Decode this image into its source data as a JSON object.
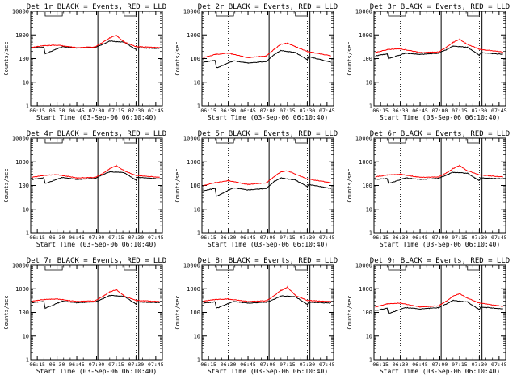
{
  "chart_data": [
    {
      "type": "line",
      "title": "Det 1r BLACK = Events, RED = LLD",
      "xlabel": "Start Time (03-Sep-06 06:10:40)",
      "ylabel": "Counts/sec",
      "x_ticks": [
        "06:15",
        "06:30",
        "06:45",
        "07:00",
        "07:15",
        "07:30",
        "07:45"
      ],
      "y_ticks": [
        "1",
        "10",
        "100",
        "1000",
        "10000"
      ],
      "yscale": "log",
      "ylim": [
        1,
        10000
      ],
      "xlim": [
        "06:10",
        "07:50"
      ],
      "grid": false,
      "legend": "none",
      "colors": {
        "events": "#000000",
        "lld": "#ff0000"
      },
      "attenuator_periods": [
        [
          "06:21",
          "06:34"
        ],
        [
          "07:21",
          "07:30"
        ]
      ],
      "marker_times_dotted": [
        "06:30",
        "07:30"
      ],
      "marker_times_solid": [
        "07:01",
        "07:32"
      ],
      "series": [
        {
          "x": [
            "06:11",
            "06:20",
            "06:21",
            "06:34",
            "06:45",
            "06:59",
            "07:05",
            "07:10",
            "07:15",
            "07:21",
            "07:30",
            "07:31",
            "07:48"
          ],
          "values": [
            280,
            305,
            160,
            320,
            280,
            300,
            400,
            550,
            520,
            500,
            240,
            280,
            270
          ]
        },
        {
          "x": [
            "06:11",
            "06:20",
            "06:30",
            "06:45",
            "06:59",
            "07:05",
            "07:10",
            "07:15",
            "07:21",
            "07:30",
            "07:48"
          ],
          "values": [
            300,
            350,
            370,
            290,
            310,
            500,
            750,
            960,
            500,
            320,
            290
          ]
        }
      ]
    },
    {
      "type": "line",
      "title": "Det 2r BLACK = Events, RED = LLD",
      "xlabel": "Start Time (03-Sep-06 06:10:40)",
      "ylabel": "Counts/sec",
      "x_ticks": [
        "06:15",
        "06:30",
        "06:45",
        "07:00",
        "07:15",
        "07:30",
        "07:45"
      ],
      "y_ticks": [
        "1",
        "10",
        "100",
        "1000",
        "10000"
      ],
      "yscale": "log",
      "ylim": [
        1,
        10000
      ],
      "xlim": [
        "06:10",
        "07:50"
      ],
      "grid": false,
      "legend": "none",
      "colors": {
        "events": "#000000",
        "lld": "#ff0000"
      },
      "attenuator_periods": [
        [
          "06:21",
          "06:34"
        ],
        [
          "07:21",
          "07:30"
        ]
      ],
      "marker_times_dotted": [
        "06:30",
        "07:30"
      ],
      "marker_times_solid": [
        "07:01",
        "07:32"
      ],
      "series": [
        {
          "x": [
            "06:11",
            "06:20",
            "06:21",
            "06:34",
            "06:45",
            "06:59",
            "07:05",
            "07:10",
            "07:15",
            "07:21",
            "07:30",
            "07:31",
            "07:48"
          ],
          "values": [
            70,
            85,
            40,
            80,
            65,
            75,
            150,
            220,
            200,
            180,
            90,
            120,
            70
          ]
        },
        {
          "x": [
            "06:11",
            "06:20",
            "06:30",
            "06:45",
            "06:59",
            "07:05",
            "07:10",
            "07:15",
            "07:21",
            "07:30",
            "07:48"
          ],
          "values": [
            110,
            150,
            170,
            110,
            130,
            250,
            400,
            450,
            320,
            200,
            130
          ]
        }
      ]
    },
    {
      "type": "line",
      "title": "Det 3r BLACK = Events, RED = LLD",
      "xlabel": "Start Time (03-Sep-06 06:10:40)",
      "ylabel": "Counts/sec",
      "x_ticks": [
        "06:15",
        "06:30",
        "06:45",
        "07:00",
        "07:15",
        "07:30",
        "07:45"
      ],
      "y_ticks": [
        "1",
        "10",
        "100",
        "1000",
        "10000"
      ],
      "yscale": "log",
      "ylim": [
        1,
        10000
      ],
      "xlim": [
        "06:10",
        "07:50"
      ],
      "grid": false,
      "legend": "none",
      "colors": {
        "events": "#000000",
        "lld": "#ff0000"
      },
      "attenuator_periods": [
        [
          "06:21",
          "06:34"
        ],
        [
          "07:21",
          "07:30"
        ]
      ],
      "marker_times_dotted": [
        "06:30",
        "07:30"
      ],
      "marker_times_solid": [
        "07:01",
        "07:32"
      ],
      "series": [
        {
          "x": [
            "06:11",
            "06:20",
            "06:21",
            "06:34",
            "06:45",
            "06:59",
            "07:05",
            "07:10",
            "07:15",
            "07:21",
            "07:30",
            "07:31",
            "07:48"
          ],
          "values": [
            130,
            160,
            100,
            170,
            150,
            170,
            240,
            330,
            320,
            300,
            140,
            180,
            150
          ]
        },
        {
          "x": [
            "06:11",
            "06:20",
            "06:30",
            "06:45",
            "06:59",
            "07:05",
            "07:10",
            "07:15",
            "07:21",
            "07:30",
            "07:48"
          ],
          "values": [
            180,
            240,
            260,
            180,
            190,
            300,
            480,
            650,
            400,
            250,
            190
          ]
        }
      ]
    },
    {
      "type": "line",
      "title": "Det 4r BLACK = Events, RED = LLD",
      "xlabel": "Start Time (03-Sep-06 06:10:40)",
      "ylabel": "Counts/sec",
      "x_ticks": [
        "06:15",
        "06:30",
        "06:45",
        "07:00",
        "07:15",
        "07:30",
        "07:45"
      ],
      "y_ticks": [
        "1",
        "10",
        "100",
        "1000",
        "10000"
      ],
      "yscale": "log",
      "ylim": [
        1,
        10000
      ],
      "xlim": [
        "06:10",
        "07:50"
      ],
      "grid": false,
      "legend": "none",
      "colors": {
        "events": "#000000",
        "lld": "#ff0000"
      },
      "attenuator_periods": [
        [
          "06:21",
          "06:34"
        ],
        [
          "07:21",
          "07:30"
        ]
      ],
      "marker_times_dotted": [
        "06:30",
        "07:30"
      ],
      "marker_times_solid": [
        "07:01",
        "07:32"
      ],
      "series": [
        {
          "x": [
            "06:11",
            "06:20",
            "06:21",
            "06:34",
            "06:45",
            "06:59",
            "07:05",
            "07:10",
            "07:15",
            "07:21",
            "07:30",
            "07:31",
            "07:48"
          ],
          "values": [
            180,
            210,
            120,
            220,
            180,
            200,
            290,
            380,
            370,
            350,
            170,
            220,
            190
          ]
        },
        {
          "x": [
            "06:11",
            "06:20",
            "06:30",
            "06:45",
            "06:59",
            "07:05",
            "07:10",
            "07:15",
            "07:21",
            "07:30",
            "07:48"
          ],
          "values": [
            220,
            270,
            290,
            210,
            220,
            330,
            520,
            700,
            420,
            270,
            220
          ]
        }
      ]
    },
    {
      "type": "line",
      "title": "Det 5r BLACK = Events, RED = LLD",
      "xlabel": "Start Time (03-Sep-06 06:10:40)",
      "ylabel": "Counts/sec",
      "x_ticks": [
        "06:15",
        "06:30",
        "06:45",
        "07:00",
        "07:15",
        "07:30",
        "07:45"
      ],
      "y_ticks": [
        "1",
        "10",
        "100",
        "1000",
        "10000"
      ],
      "yscale": "log",
      "ylim": [
        1,
        10000
      ],
      "xlim": [
        "06:10",
        "07:50"
      ],
      "grid": false,
      "legend": "none",
      "colors": {
        "events": "#000000",
        "lld": "#ff0000"
      },
      "attenuator_periods": [
        [
          "06:21",
          "06:34"
        ],
        [
          "07:21",
          "07:30"
        ]
      ],
      "marker_times_dotted": [
        "06:30",
        "07:30"
      ],
      "marker_times_solid": [
        "07:01",
        "07:32"
      ],
      "series": [
        {
          "x": [
            "06:11",
            "06:20",
            "06:21",
            "06:34",
            "06:45",
            "06:59",
            "07:05",
            "07:10",
            "07:15",
            "07:21",
            "07:30",
            "07:31",
            "07:48"
          ],
          "values": [
            60,
            75,
            35,
            80,
            65,
            75,
            150,
            210,
            190,
            170,
            90,
            110,
            75
          ]
        },
        {
          "x": [
            "06:11",
            "06:20",
            "06:30",
            "06:45",
            "06:59",
            "07:05",
            "07:10",
            "07:15",
            "07:21",
            "07:30",
            "07:48"
          ],
          "values": [
            100,
            130,
            160,
            110,
            130,
            240,
            380,
            420,
            300,
            190,
            130
          ]
        }
      ]
    },
    {
      "type": "line",
      "title": "Det 6r BLACK = Events, RED = LLD",
      "xlabel": "Start Time (03-Sep-06 06:10:40)",
      "ylabel": "Counts/sec",
      "x_ticks": [
        "06:15",
        "06:30",
        "06:45",
        "07:00",
        "07:15",
        "07:30",
        "07:45"
      ],
      "y_ticks": [
        "1",
        "10",
        "100",
        "1000",
        "10000"
      ],
      "yscale": "log",
      "ylim": [
        1,
        10000
      ],
      "xlim": [
        "06:10",
        "07:50"
      ],
      "grid": false,
      "legend": "none",
      "colors": {
        "events": "#000000",
        "lld": "#ff0000"
      },
      "attenuator_periods": [
        [
          "06:21",
          "06:34"
        ],
        [
          "07:21",
          "07:30"
        ]
      ],
      "marker_times_dotted": [
        "06:30",
        "07:30"
      ],
      "marker_times_solid": [
        "07:01",
        "07:32"
      ],
      "series": [
        {
          "x": [
            "06:11",
            "06:20",
            "06:21",
            "06:34",
            "06:45",
            "06:59",
            "07:05",
            "07:10",
            "07:15",
            "07:21",
            "07:30",
            "07:31",
            "07:48"
          ],
          "values": [
            180,
            200,
            120,
            210,
            180,
            200,
            280,
            360,
            350,
            330,
            160,
            210,
            190
          ]
        },
        {
          "x": [
            "06:11",
            "06:20",
            "06:30",
            "06:45",
            "06:59",
            "07:05",
            "07:10",
            "07:15",
            "07:21",
            "07:30",
            "07:48"
          ],
          "values": [
            230,
            280,
            300,
            220,
            230,
            340,
            520,
            700,
            420,
            280,
            230
          ]
        }
      ]
    },
    {
      "type": "line",
      "title": "Det 7r BLACK = Events, RED = LLD",
      "xlabel": "Start Time (03-Sep-06 06:10:40)",
      "ylabel": "Counts/sec",
      "x_ticks": [
        "06:15",
        "06:30",
        "06:45",
        "07:00",
        "07:15",
        "07:30",
        "07:45"
      ],
      "y_ticks": [
        "1",
        "10",
        "100",
        "1000",
        "10000"
      ],
      "yscale": "log",
      "ylim": [
        1,
        10000
      ],
      "xlim": [
        "06:10",
        "07:50"
      ],
      "grid": false,
      "legend": "none",
      "colors": {
        "events": "#000000",
        "lld": "#ff0000"
      },
      "attenuator_periods": [
        [
          "06:21",
          "06:34"
        ],
        [
          "07:21",
          "07:30"
        ]
      ],
      "marker_times_dotted": [
        "06:30",
        "07:30"
      ],
      "marker_times_solid": [
        "07:01",
        "07:32"
      ],
      "series": [
        {
          "x": [
            "06:11",
            "06:20",
            "06:21",
            "06:34",
            "06:45",
            "06:59",
            "07:05",
            "07:10",
            "07:15",
            "07:21",
            "07:30",
            "07:31",
            "07:48"
          ],
          "values": [
            260,
            290,
            150,
            300,
            260,
            280,
            380,
            520,
            500,
            480,
            230,
            280,
            260
          ]
        },
        {
          "x": [
            "06:11",
            "06:20",
            "06:30",
            "06:45",
            "06:59",
            "07:05",
            "07:10",
            "07:15",
            "07:21",
            "07:30",
            "07:48"
          ],
          "values": [
            300,
            350,
            370,
            290,
            310,
            480,
            740,
            920,
            500,
            320,
            290
          ]
        }
      ]
    },
    {
      "type": "line",
      "title": "Det 8r BLACK = Events, RED = LLD",
      "xlabel": "Start Time (03-Sep-06 06:10:40)",
      "ylabel": "Counts/sec",
      "x_ticks": [
        "06:15",
        "06:30",
        "06:45",
        "07:00",
        "07:15",
        "07:30",
        "07:45"
      ],
      "y_ticks": [
        "1",
        "10",
        "100",
        "1000",
        "10000"
      ],
      "yscale": "log",
      "ylim": [
        1,
        10000
      ],
      "xlim": [
        "06:10",
        "07:50"
      ],
      "grid": false,
      "legend": "none",
      "colors": {
        "events": "#000000",
        "lld": "#ff0000"
      },
      "attenuator_periods": [
        [
          "06:21",
          "06:34"
        ],
        [
          "07:21",
          "07:30"
        ]
      ],
      "marker_times_dotted": [
        "06:30",
        "07:30"
      ],
      "marker_times_solid": [
        "07:01",
        "07:32"
      ],
      "series": [
        {
          "x": [
            "06:11",
            "06:20",
            "06:21",
            "06:34",
            "06:45",
            "06:59",
            "07:05",
            "07:10",
            "07:15",
            "07:21",
            "07:30",
            "07:31",
            "07:48"
          ],
          "values": [
            250,
            280,
            150,
            290,
            250,
            270,
            360,
            500,
            480,
            460,
            220,
            270,
            250
          ]
        },
        {
          "x": [
            "06:11",
            "06:20",
            "06:30",
            "06:45",
            "06:59",
            "07:05",
            "07:10",
            "07:15",
            "07:21",
            "07:30",
            "07:48"
          ],
          "values": [
            300,
            350,
            370,
            290,
            310,
            520,
            850,
            1150,
            520,
            320,
            290
          ]
        }
      ]
    },
    {
      "type": "line",
      "title": "Det 9r BLACK = Events, RED = LLD",
      "xlabel": "Start Time (03-Sep-06 06:10:40)",
      "ylabel": "Counts/sec",
      "x_ticks": [
        "06:15",
        "06:30",
        "06:45",
        "07:00",
        "07:15",
        "07:30",
        "07:45"
      ],
      "y_ticks": [
        "1",
        "10",
        "100",
        "1000",
        "10000"
      ],
      "yscale": "log",
      "ylim": [
        1,
        10000
      ],
      "xlim": [
        "06:10",
        "07:50"
      ],
      "grid": false,
      "legend": "none",
      "colors": {
        "events": "#000000",
        "lld": "#ff0000"
      },
      "attenuator_periods": [
        [
          "06:21",
          "06:34"
        ],
        [
          "07:21",
          "07:30"
        ]
      ],
      "marker_times_dotted": [
        "06:30",
        "07:30"
      ],
      "marker_times_solid": [
        "07:01",
        "07:32"
      ],
      "series": [
        {
          "x": [
            "06:11",
            "06:20",
            "06:21",
            "06:34",
            "06:45",
            "06:59",
            "07:05",
            "07:10",
            "07:15",
            "07:21",
            "07:30",
            "07:31",
            "07:48"
          ],
          "values": [
            120,
            150,
            90,
            160,
            140,
            160,
            230,
            320,
            300,
            280,
            130,
            170,
            140
          ]
        },
        {
          "x": [
            "06:11",
            "06:20",
            "06:30",
            "06:45",
            "06:59",
            "07:05",
            "07:10",
            "07:15",
            "07:21",
            "07:30",
            "07:48"
          ],
          "values": [
            170,
            230,
            250,
            170,
            190,
            300,
            480,
            620,
            400,
            250,
            180
          ]
        }
      ]
    }
  ]
}
